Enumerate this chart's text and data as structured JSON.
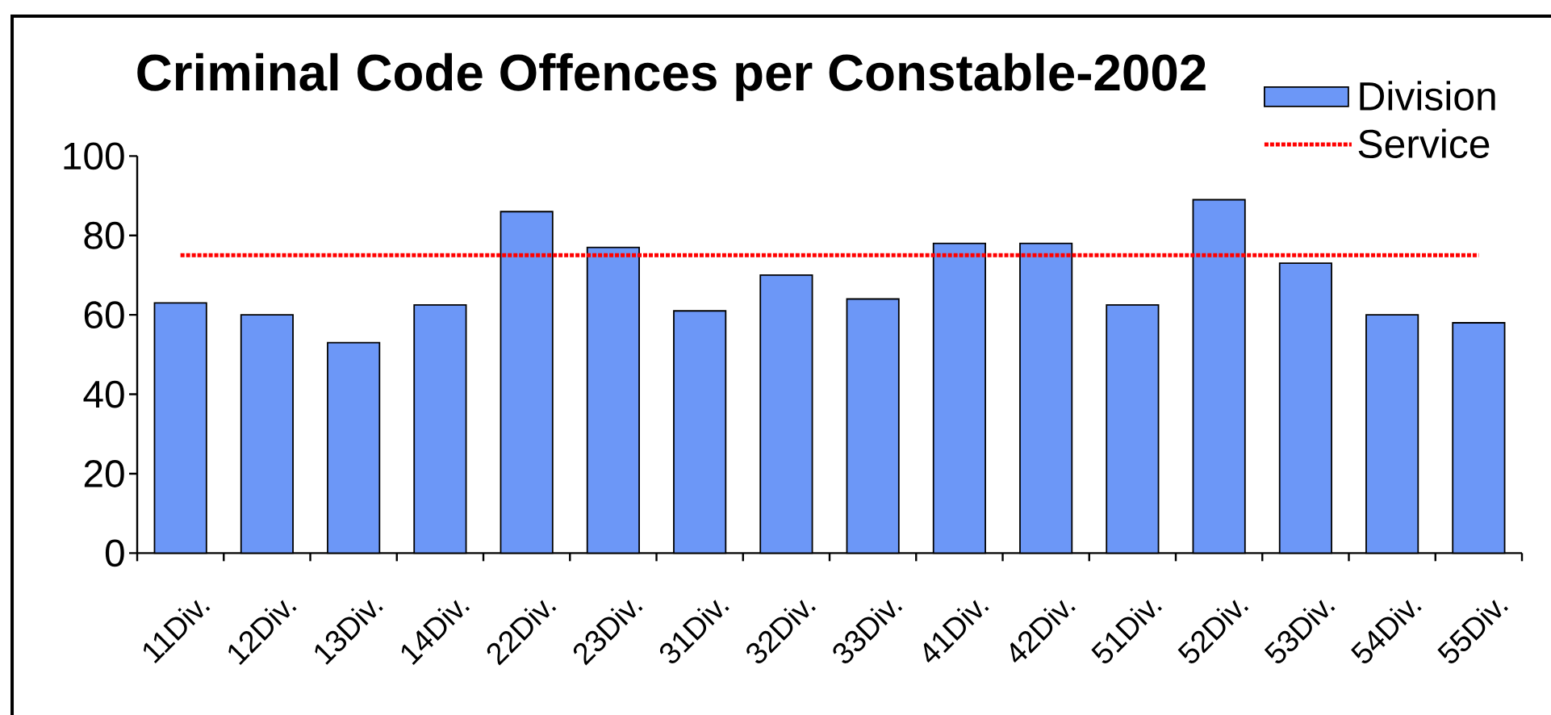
{
  "chart_data": {
    "type": "bar",
    "title": "Criminal Code Offences per Constable-2002",
    "categories": [
      "11Div.",
      "12Div.",
      "13Div.",
      "14Div.",
      "22Div.",
      "23Div.",
      "31Div.",
      "32Div.",
      "33Div.",
      "41Div.",
      "42Div.",
      "51Div.",
      "52Div.",
      "53Div.",
      "54Div.",
      "55Div."
    ],
    "series": [
      {
        "name": "Division",
        "color": "#6c97f7",
        "values": [
          63,
          60,
          53,
          62.5,
          86,
          77,
          61,
          70,
          64,
          78,
          78,
          62.5,
          89,
          73,
          60,
          58
        ]
      },
      {
        "name": "Service",
        "type": "line",
        "color": "#ff0000",
        "values": [
          75,
          75,
          75,
          75,
          75,
          75,
          75,
          75,
          75,
          75,
          75,
          75,
          75,
          75,
          75,
          75
        ]
      }
    ],
    "ylim": [
      0,
      100
    ],
    "yticks": [
      0,
      20,
      40,
      60,
      80,
      100
    ],
    "legend": "top right",
    "line_style": "dotted"
  }
}
